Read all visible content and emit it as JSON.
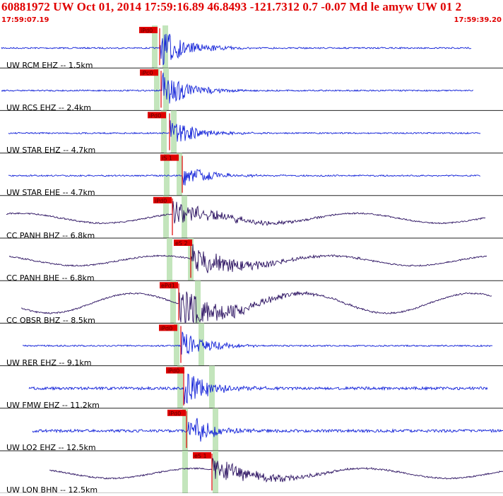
{
  "header": {
    "title": "60881972 UW Oct 01, 2014 17:59:16.89   46.8493 -121.7312  0.7 -0.07 Md le amyw UW 01   2",
    "start_time": "17:59:07.19",
    "end_time": "17:59:39.20"
  },
  "colors": {
    "title": "#e00000",
    "trace_ehz": "#1020d8",
    "trace_bh": "#2a1060",
    "pick": "#e00000",
    "window": "#b8e0b0"
  },
  "channels": [
    {
      "label": "UW RCM EHZ -- 1.5km",
      "type": "ehz",
      "pick": "iPd0"
    },
    {
      "label": "UW RCS EHZ -- 2.4km",
      "type": "ehz",
      "pick": "iPc0"
    },
    {
      "label": "UW STAR EHZ -- 4.7km",
      "type": "ehz",
      "pick": "iPd0"
    },
    {
      "label": "UW STAR EHE -- 4.7km",
      "type": "ehz",
      "pick": "iS 1"
    },
    {
      "label": "CC PANH BHZ -- 6.8km",
      "type": "bh",
      "pick": "iPd0"
    },
    {
      "label": "CC PANH BHE -- 6.8km",
      "type": "bh",
      "pick": "eS 2"
    },
    {
      "label": "CC OBSR BHZ -- 8.5km",
      "type": "bh",
      "pick": "ePd1"
    },
    {
      "label": "UW RER EHZ -- 9.1km",
      "type": "ehz",
      "pick": "iPd0"
    },
    {
      "label": "UW FMW EHZ -- 11.2km",
      "type": "ehz",
      "pick": "iPd0"
    },
    {
      "label": "UW LO2 EHZ -- 12.5km",
      "type": "ehz",
      "pick": "iPd0"
    },
    {
      "label": "UW LON BHN -- 12.5km",
      "type": "bh",
      "pick": "eS 1"
    }
  ]
}
